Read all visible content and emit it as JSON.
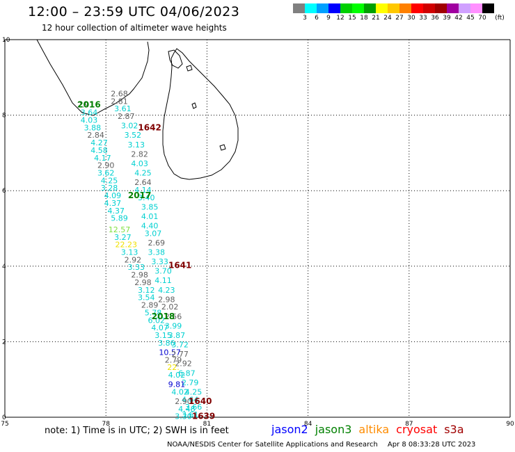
{
  "header": {
    "title": "12:00 – 23:59 UTC 04/06/2023",
    "subtitle": "12 hour collection of altimeter wave heights"
  },
  "legend": {
    "unit": "(ft)",
    "colors": [
      "#808080",
      "#00ffff",
      "#00a0ff",
      "#0000ff",
      "#00d000",
      "#00ff00",
      "#00a000",
      "#ffff00",
      "#ffc800",
      "#ff8000",
      "#ff0000",
      "#d00000",
      "#a00000",
      "#a000a0",
      "#d0a0ff",
      "#ff90ff",
      "#000000"
    ],
    "labels": [
      "3",
      "6",
      "9",
      "12",
      "15",
      "18",
      "21",
      "24",
      "27",
      "30",
      "33",
      "36",
      "39",
      "42",
      "45",
      "70"
    ]
  },
  "axes": {
    "x_ticks": [
      "75",
      "78",
      "81",
      "84",
      "87",
      "90"
    ],
    "y_ticks": [
      "10",
      "8",
      "6",
      "4",
      "2",
      "0"
    ]
  },
  "passes": [
    {
      "label": "2016",
      "color": "#008000",
      "lon": 77.5,
      "lat": 8.2
    },
    {
      "label": "1642",
      "color": "#800000",
      "lon": 79.3,
      "lat": 7.6
    },
    {
      "label": "2017",
      "color": "#008000",
      "lon": 79.0,
      "lat": 5.8
    },
    {
      "label": "1641",
      "color": "#800000",
      "lon": 80.2,
      "lat": 3.95
    },
    {
      "label": "2018",
      "color": "#008000",
      "lon": 79.7,
      "lat": 2.6
    },
    {
      "label": "1640",
      "color": "#800000",
      "lon": 80.8,
      "lat": 0.35
    },
    {
      "label": "1639",
      "color": "#800000",
      "lon": 80.9,
      "lat": -0.05
    }
  ],
  "wave_heights": [
    {
      "v": "2.68",
      "c": "#606060",
      "lon": 78.4,
      "lat": 8.5
    },
    {
      "v": "2.91",
      "c": "#606060",
      "lon": 77.4,
      "lat": 8.2
    },
    {
      "v": "2.81",
      "c": "#606060",
      "lon": 78.4,
      "lat": 8.3
    },
    {
      "v": "3.61",
      "c": "#00d0d0",
      "lon": 78.5,
      "lat": 8.1
    },
    {
      "v": "3.64",
      "c": "#00d0d0",
      "lon": 77.5,
      "lat": 8.0
    },
    {
      "v": "2.87",
      "c": "#606060",
      "lon": 78.6,
      "lat": 7.9
    },
    {
      "v": "4.03",
      "c": "#00d0d0",
      "lon": 77.5,
      "lat": 7.8
    },
    {
      "v": "3.02",
      "c": "#00d0d0",
      "lon": 78.7,
      "lat": 7.65
    },
    {
      "v": "3.88",
      "c": "#00d0d0",
      "lon": 77.6,
      "lat": 7.6
    },
    {
      "v": "2.84",
      "c": "#606060",
      "lon": 77.7,
      "lat": 7.4
    },
    {
      "v": "3.52",
      "c": "#00d0d0",
      "lon": 78.8,
      "lat": 7.4
    },
    {
      "v": "4.27",
      "c": "#00d0d0",
      "lon": 77.8,
      "lat": 7.2
    },
    {
      "v": "3.13",
      "c": "#00d0d0",
      "lon": 78.9,
      "lat": 7.15
    },
    {
      "v": "4.58",
      "c": "#00d0d0",
      "lon": 77.8,
      "lat": 7.0
    },
    {
      "v": "2.82",
      "c": "#606060",
      "lon": 79.0,
      "lat": 6.9
    },
    {
      "v": "4.17",
      "c": "#00d0d0",
      "lon": 77.9,
      "lat": 6.8
    },
    {
      "v": "4.03",
      "c": "#00d0d0",
      "lon": 79.0,
      "lat": 6.65
    },
    {
      "v": "2.90",
      "c": "#606060",
      "lon": 78.0,
      "lat": 6.6
    },
    {
      "v": "4.25",
      "c": "#00d0d0",
      "lon": 79.1,
      "lat": 6.4
    },
    {
      "v": "3.62",
      "c": "#00d0d0",
      "lon": 78.0,
      "lat": 6.4
    },
    {
      "v": "4.25",
      "c": "#00d0d0",
      "lon": 78.1,
      "lat": 6.2
    },
    {
      "v": "2.64",
      "c": "#606060",
      "lon": 79.1,
      "lat": 6.15
    },
    {
      "v": "3.28",
      "c": "#00d0d0",
      "lon": 78.1,
      "lat": 6.0
    },
    {
      "v": "4.14",
      "c": "#00d0d0",
      "lon": 79.1,
      "lat": 5.95
    },
    {
      "v": "4.09",
      "c": "#00d0d0",
      "lon": 78.2,
      "lat": 5.8
    },
    {
      "v": "3.40",
      "c": "#00d0d0",
      "lon": 79.2,
      "lat": 5.75
    },
    {
      "v": "4.37",
      "c": "#00d0d0",
      "lon": 78.2,
      "lat": 5.6
    },
    {
      "v": "3.85",
      "c": "#00d0d0",
      "lon": 79.3,
      "lat": 5.5
    },
    {
      "v": "4.37",
      "c": "#00d0d0",
      "lon": 78.3,
      "lat": 5.4
    },
    {
      "v": "4.01",
      "c": "#00d0d0",
      "lon": 79.3,
      "lat": 5.25
    },
    {
      "v": "5.89",
      "c": "#00d0d0",
      "lon": 78.4,
      "lat": 5.2
    },
    {
      "v": "4.40",
      "c": "#00d0d0",
      "lon": 79.3,
      "lat": 5.0
    },
    {
      "v": "12.57",
      "c": "#80e040",
      "lon": 78.4,
      "lat": 4.9
    },
    {
      "v": "3.07",
      "c": "#00d0d0",
      "lon": 79.4,
      "lat": 4.8
    },
    {
      "v": "3.27",
      "c": "#00d0d0",
      "lon": 78.5,
      "lat": 4.7
    },
    {
      "v": "2.69",
      "c": "#606060",
      "lon": 79.5,
      "lat": 4.55
    },
    {
      "v": "22.23",
      "c": "#f0e000",
      "lon": 78.6,
      "lat": 4.5
    },
    {
      "v": "3.38",
      "c": "#00d0d0",
      "lon": 79.5,
      "lat": 4.3
    },
    {
      "v": "3.13",
      "c": "#00d0d0",
      "lon": 78.7,
      "lat": 4.3
    },
    {
      "v": "2.92",
      "c": "#606060",
      "lon": 78.8,
      "lat": 4.1
    },
    {
      "v": "3.33",
      "c": "#00d0d0",
      "lon": 79.6,
      "lat": 4.05
    },
    {
      "v": "3.33",
      "c": "#00d0d0",
      "lon": 78.9,
      "lat": 3.9
    },
    {
      "v": "3.70",
      "c": "#00d0d0",
      "lon": 79.7,
      "lat": 3.8
    },
    {
      "v": "2.98",
      "c": "#606060",
      "lon": 79.0,
      "lat": 3.7
    },
    {
      "v": "4.11",
      "c": "#00d0d0",
      "lon": 79.7,
      "lat": 3.55
    },
    {
      "v": "2.98",
      "c": "#606060",
      "lon": 79.1,
      "lat": 3.5
    },
    {
      "v": "4.23",
      "c": "#00d0d0",
      "lon": 79.8,
      "lat": 3.3
    },
    {
      "v": "3.12",
      "c": "#00d0d0",
      "lon": 79.2,
      "lat": 3.3
    },
    {
      "v": "3.54",
      "c": "#00d0d0",
      "lon": 79.2,
      "lat": 3.1
    },
    {
      "v": "2.98",
      "c": "#606060",
      "lon": 79.8,
      "lat": 3.05
    },
    {
      "v": "2.89",
      "c": "#606060",
      "lon": 79.3,
      "lat": 2.9
    },
    {
      "v": "2.02",
      "c": "#606060",
      "lon": 79.9,
      "lat": 2.85
    },
    {
      "v": "5.78",
      "c": "#00d0d0",
      "lon": 79.4,
      "lat": 2.7
    },
    {
      "v": "2.56",
      "c": "#606060",
      "lon": 80.0,
      "lat": 2.6
    },
    {
      "v": "6.02",
      "c": "#00d0d0",
      "lon": 79.5,
      "lat": 2.5
    },
    {
      "v": "3.99",
      "c": "#00d0d0",
      "lon": 80.0,
      "lat": 2.35
    },
    {
      "v": "4.07",
      "c": "#00d0d0",
      "lon": 79.6,
      "lat": 2.3
    },
    {
      "v": "3.87",
      "c": "#00d0d0",
      "lon": 80.1,
      "lat": 2.1
    },
    {
      "v": "3.15",
      "c": "#00d0d0",
      "lon": 79.7,
      "lat": 2.1
    },
    {
      "v": "3.72",
      "c": "#00d0d0",
      "lon": 80.2,
      "lat": 1.85
    },
    {
      "v": "3.86",
      "c": "#00d0d0",
      "lon": 79.8,
      "lat": 1.9
    },
    {
      "v": "10.57",
      "c": "#0000d0",
      "lon": 79.9,
      "lat": 1.65
    },
    {
      "v": "2.77",
      "c": "#606060",
      "lon": 80.2,
      "lat": 1.6
    },
    {
      "v": "2.79",
      "c": "#606060",
      "lon": 80.0,
      "lat": 1.45
    },
    {
      "v": "2.92",
      "c": "#606060",
      "lon": 80.3,
      "lat": 1.35
    },
    {
      "v": "22.",
      "c": "#f0e000",
      "lon": 80.0,
      "lat": 1.25
    },
    {
      "v": "6.87",
      "c": "#00d0d0",
      "lon": 80.4,
      "lat": 1.1
    },
    {
      "v": "4.02",
      "c": "#00d0d0",
      "lon": 80.1,
      "lat": 1.05
    },
    {
      "v": "2.79",
      "c": "#00d0d0",
      "lon": 80.5,
      "lat": 0.85
    },
    {
      "v": "9.81",
      "c": "#0000d0",
      "lon": 80.1,
      "lat": 0.8
    },
    {
      "v": "4.25",
      "c": "#00d0d0",
      "lon": 80.6,
      "lat": 0.6
    },
    {
      "v": "4.02",
      "c": "#00d0d0",
      "lon": 80.2,
      "lat": 0.6
    },
    {
      "v": "4.64",
      "c": "#00d0d0",
      "lon": 80.5,
      "lat": 0.4
    },
    {
      "v": "2.90",
      "c": "#606060",
      "lon": 80.3,
      "lat": 0.35
    },
    {
      "v": "3.66",
      "c": "#00d0d0",
      "lon": 80.6,
      "lat": 0.2
    },
    {
      "v": "4.48",
      "c": "#00d0d0",
      "lon": 80.4,
      "lat": 0.15
    },
    {
      "v": "3.61",
      "c": "#00d0d0",
      "lon": 80.5,
      "lat": 0.0
    },
    {
      "v": "3.30",
      "c": "#00d0d0",
      "lon": 80.3,
      "lat": -0.05
    }
  ],
  "footer": {
    "note": "note: 1) Time is in UTC; 2) SWH is in feet",
    "missions": [
      {
        "name": "jason2",
        "color": "#0000ff"
      },
      {
        "name": "jason3",
        "color": "#008000"
      },
      {
        "name": "altika",
        "color": "#ff8c00"
      },
      {
        "name": "cryosat",
        "color": "#ff0000"
      },
      {
        "name": "s3a",
        "color": "#a00000"
      }
    ],
    "credit": "NOAA/NESDIS Center for Satellite Applications and Research",
    "timestamp": "Apr  8 08:33:28 UTC 2023"
  }
}
